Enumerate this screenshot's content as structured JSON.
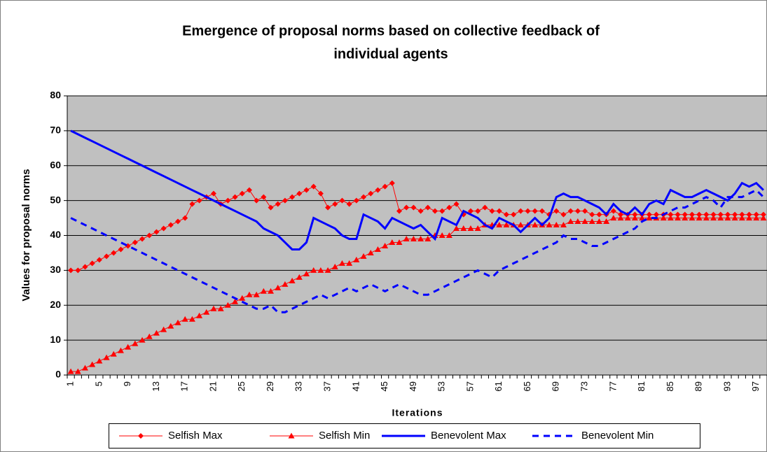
{
  "chart_data": {
    "type": "line",
    "title": "Emergence of proposal norms based on collective feedback of individual agents",
    "title_lines": [
      "Emergence of proposal norms based on collective feedback of",
      "individual agents"
    ],
    "x_label": "Iterations",
    "y_label": "Values for proposal norms",
    "categories": [
      1,
      null,
      null,
      null,
      5,
      null,
      null,
      null,
      9,
      null,
      null,
      null,
      13,
      null,
      null,
      null,
      17,
      null,
      null,
      null,
      21,
      null,
      null,
      null,
      25,
      null,
      null,
      null,
      29,
      null,
      null,
      null,
      33,
      null,
      null,
      null,
      37,
      null,
      null,
      null,
      41,
      null,
      null,
      null,
      45,
      null,
      null,
      null,
      49,
      null,
      null,
      null,
      53,
      null,
      null,
      null,
      57,
      null,
      null,
      null,
      61,
      null,
      null,
      null,
      65,
      null,
      null,
      null,
      69,
      null,
      null,
      null,
      73,
      null,
      null,
      null,
      77,
      null,
      null,
      null,
      81,
      null,
      null,
      null,
      85,
      null,
      null,
      null,
      89,
      null,
      null,
      null,
      93,
      null,
      null,
      null,
      97,
      null
    ],
    "ylim": [
      0,
      80
    ],
    "yticks": [
      0,
      10,
      20,
      30,
      40,
      50,
      60,
      70,
      80
    ],
    "grid": true,
    "plot_background": "#c0c0c0",
    "legend": "bottom",
    "series": [
      {
        "name": "Selfish Max",
        "color": "#ff0000",
        "marker": "diamond",
        "width": 1,
        "dash": false,
        "values": [
          30,
          30,
          31,
          32,
          33,
          34,
          35,
          36,
          37,
          38,
          39,
          40,
          41,
          42,
          43,
          44,
          45,
          49,
          50,
          51,
          52,
          49,
          50,
          51,
          52,
          53,
          50,
          51,
          48,
          49,
          50,
          51,
          52,
          53,
          54,
          52,
          48,
          49,
          50,
          49,
          50,
          51,
          52,
          53,
          54,
          55,
          47,
          48,
          48,
          47,
          48,
          47,
          47,
          48,
          49,
          46,
          47,
          47,
          48,
          47,
          47,
          46,
          46,
          47,
          47,
          47,
          47,
          46,
          47,
          46,
          47,
          47,
          47,
          46,
          46,
          46,
          47,
          46,
          46,
          46,
          46,
          46,
          46,
          46,
          46,
          46,
          46,
          46,
          46,
          46,
          46,
          46,
          46,
          46,
          46,
          46,
          46,
          46
        ]
      },
      {
        "name": "Selfish Min",
        "color": "#ff0000",
        "marker": "triangle",
        "width": 1,
        "dash": false,
        "values": [
          1,
          1,
          2,
          3,
          4,
          5,
          6,
          7,
          8,
          9,
          10,
          11,
          12,
          13,
          14,
          15,
          16,
          16,
          17,
          18,
          19,
          19,
          20,
          21,
          22,
          23,
          23,
          24,
          24,
          25,
          26,
          27,
          28,
          29,
          30,
          30,
          30,
          31,
          32,
          32,
          33,
          34,
          35,
          36,
          37,
          38,
          38,
          39,
          39,
          39,
          39,
          40,
          40,
          40,
          42,
          42,
          42,
          42,
          43,
          43,
          43,
          43,
          43,
          43,
          43,
          43,
          43,
          43,
          43,
          43,
          44,
          44,
          44,
          44,
          44,
          44,
          45,
          45,
          45,
          45,
          45,
          45,
          45,
          45,
          45,
          45,
          45,
          45,
          45,
          45,
          45,
          45,
          45,
          45,
          45,
          45,
          45,
          45
        ]
      },
      {
        "name": "Benevolent Max",
        "color": "#0000ff",
        "marker": "none",
        "width": 3,
        "dash": false,
        "values": [
          70,
          69,
          68,
          67,
          66,
          65,
          64,
          63,
          62,
          61,
          60,
          59,
          58,
          57,
          56,
          55,
          54,
          53,
          52,
          51,
          50,
          49,
          48,
          47,
          46,
          45,
          44,
          42,
          41,
          40,
          38,
          36,
          36,
          38,
          45,
          44,
          43,
          42,
          40,
          39,
          39,
          46,
          45,
          44,
          42,
          45,
          44,
          43,
          42,
          43,
          41,
          39,
          45,
          44,
          43,
          47,
          46,
          45,
          43,
          42,
          45,
          44,
          43,
          41,
          43,
          45,
          43,
          45,
          51,
          52,
          51,
          51,
          50,
          49,
          48,
          46,
          49,
          47,
          46,
          48,
          46,
          49,
          50,
          49,
          53,
          52,
          51,
          51,
          52,
          53,
          52,
          51,
          50,
          52,
          55,
          54,
          55,
          53
        ]
      },
      {
        "name": "Benevolent Min",
        "color": "#0000ff",
        "marker": "none",
        "width": 3,
        "dash": true,
        "values": [
          45,
          44,
          43,
          42,
          41,
          40,
          39,
          38,
          37,
          36,
          35,
          34,
          33,
          32,
          31,
          30,
          29,
          28,
          27,
          26,
          25,
          24,
          23,
          22,
          21,
          20,
          19,
          19,
          20,
          18,
          18,
          19,
          20,
          21,
          22,
          23,
          22,
          23,
          24,
          25,
          24,
          25,
          26,
          25,
          24,
          25,
          26,
          25,
          24,
          23,
          23,
          24,
          25,
          26,
          27,
          28,
          29,
          30,
          29,
          28,
          30,
          31,
          32,
          33,
          34,
          35,
          36,
          37,
          38,
          40,
          39,
          39,
          38,
          37,
          37,
          38,
          39,
          40,
          41,
          42,
          44,
          45,
          45,
          46,
          47,
          48,
          48,
          49,
          50,
          51,
          50,
          48,
          51,
          51,
          51,
          52,
          53,
          51
        ]
      }
    ]
  }
}
